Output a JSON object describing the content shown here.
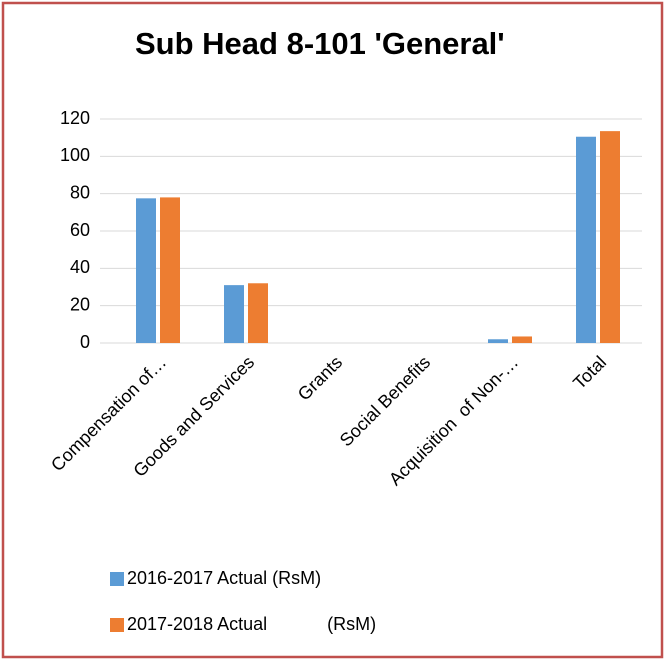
{
  "chart_data": {
    "type": "bar",
    "title": "Sub Head 8-101 'General'",
    "categories": [
      "Compensation of…",
      "Goods and Services",
      "Grants",
      "Social Benefits",
      "Acquisition  of Non-…",
      "Total"
    ],
    "series": [
      {
        "name": "2016-2017 Actual (RsM)",
        "color": "#5b9bd5",
        "values": [
          77.5,
          31,
          0,
          0,
          2,
          110.5
        ]
      },
      {
        "name": "2017-2018 Actual            (RsM)",
        "color": "#ed7d31",
        "values": [
          78,
          32,
          0,
          0,
          3.5,
          113.5
        ]
      }
    ],
    "ylim": [
      0,
      120
    ],
    "yticks": [
      0,
      20,
      40,
      60,
      80,
      100,
      120
    ],
    "grid": true
  }
}
